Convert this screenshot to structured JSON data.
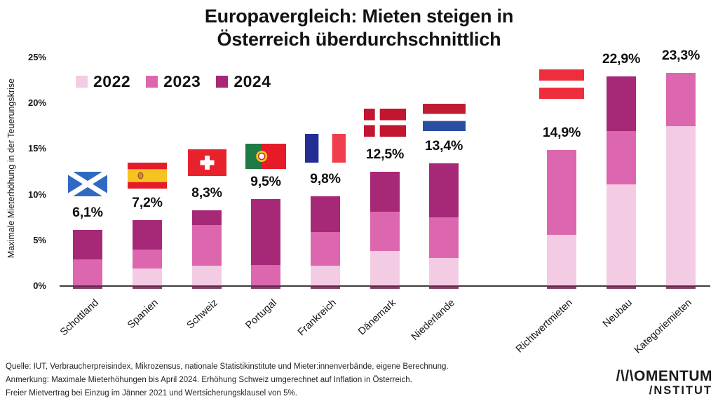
{
  "title": {
    "line1": "Europavergleich: Mieten steigen in",
    "line2": "Österreich überdurchschnittlich"
  },
  "y_axis": {
    "title": "Maximale Mieterhöhung in der Teuerungskrise",
    "ticks": [
      "0%",
      "5%",
      "10%",
      "15%",
      "20%",
      "25%"
    ]
  },
  "legend": {
    "items": [
      {
        "label": "2022",
        "color": "#f3cce3"
      },
      {
        "label": "2023",
        "color": "#dc67ae"
      },
      {
        "label": "2024",
        "color": "#a62876"
      }
    ]
  },
  "chart_data": {
    "type": "bar",
    "stacked": true,
    "unit": "percent",
    "ylim": [
      0,
      25
    ],
    "grid": false,
    "legend_position": "top-left",
    "series_names": [
      "2022",
      "2023",
      "2024"
    ],
    "categories": [
      {
        "label": "Schottland",
        "flag": "scotland",
        "total": 6.1,
        "total_label": "6,1%",
        "values": [
          0,
          2.9,
          3.2
        ]
      },
      {
        "label": "Spanien",
        "flag": "spain",
        "total": 7.2,
        "total_label": "7,2%",
        "values": [
          1.9,
          2.1,
          3.2
        ]
      },
      {
        "label": "Schweiz",
        "flag": "switzerland",
        "total": 8.3,
        "total_label": "8,3%",
        "values": [
          2.2,
          4.5,
          1.6
        ]
      },
      {
        "label": "Portugal",
        "flag": "portugal",
        "total": 9.5,
        "total_label": "9,5%",
        "values": [
          0,
          2.3,
          7.2
        ]
      },
      {
        "label": "Frankreich",
        "flag": "france",
        "total": 9.8,
        "total_label": "9,8%",
        "values": [
          2.2,
          3.7,
          3.9
        ]
      },
      {
        "label": "Dänemark",
        "flag": "denmark",
        "total": 12.5,
        "total_label": "12,5%",
        "values": [
          3.8,
          4.3,
          4.4
        ]
      },
      {
        "label": "Niederlande",
        "flag": "netherlands",
        "total": 13.4,
        "total_label": "13,4%",
        "values": [
          3.1,
          4.4,
          5.9
        ]
      },
      {
        "label": "Richtwertmieten",
        "flag": "austria",
        "total": 14.9,
        "total_label": "14,9%",
        "values": [
          5.6,
          9.3,
          0
        ]
      },
      {
        "label": "Neubau",
        "flag": null,
        "total": 22.9,
        "total_label": "22,9%",
        "values": [
          11.1,
          5.8,
          6.0
        ]
      },
      {
        "label": "Kategoriemieten",
        "flag": null,
        "total": 23.3,
        "total_label": "23,3%",
        "values": [
          17.5,
          5.8,
          0
        ]
      }
    ]
  },
  "footer": {
    "lines": [
      "Quelle: IUT, Verbraucherpreisindex, Mikrozensus, nationale Statistikinstitute und Mieter:innenverbände, eigene Berechnung.",
      "Anmerkung: Maximale Mieterhöhungen bis April 2024. Erhöhung Schweiz umgerechnet auf Inflation in Österreich.",
      "Freier Mietvertrag bei Einzug im Jänner 2021 und Wertsicherungsklausel von 5%."
    ]
  },
  "logo": {
    "line1": "/\\/\\OMENTUM",
    "line2": "/NSTITUT"
  },
  "colors": {
    "axis_line": "#3e3e3e",
    "bar_2022": "#f3cce3",
    "bar_2023": "#dc67ae",
    "bar_2024": "#a62876",
    "bar_base_edge": "#6f1e4d"
  }
}
